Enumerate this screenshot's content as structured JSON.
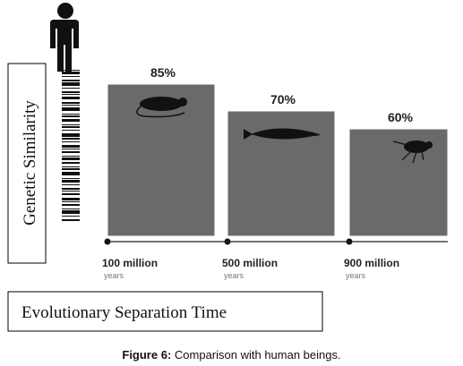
{
  "chart_data": {
    "type": "bar",
    "categories": [
      "100 million",
      "500 million",
      "900 million"
    ],
    "category_sublabel": "years",
    "values": [
      85,
      70,
      60
    ],
    "value_labels": [
      "85%",
      "70%",
      "60%"
    ],
    "bar_icons": [
      "rat-icon",
      "fish-icon",
      "fly-icon"
    ],
    "ylabel": "Genetic Similarity",
    "xlabel": "Evolutionary Separation Time",
    "ylim": [
      0,
      100
    ],
    "grid": false,
    "bar_color": "#6a6a6a"
  },
  "caption": {
    "prefix": "Figure 6:",
    "text": " Comparison with human beings."
  },
  "colors": {
    "bar": "#6a6a6a",
    "axis": "#222222",
    "frame": "#000000"
  },
  "icons": [
    "human-figure-icon",
    "dna-barcode-icon"
  ]
}
